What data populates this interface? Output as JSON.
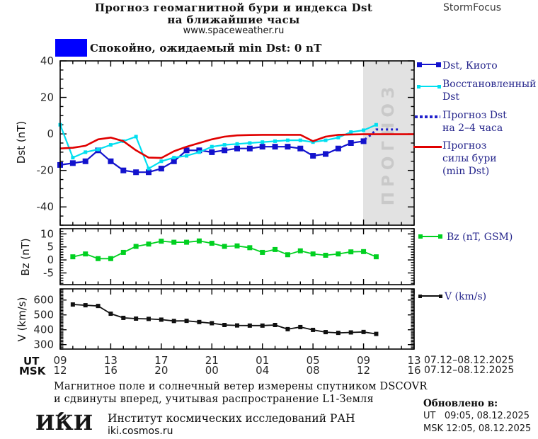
{
  "header": {
    "title_line1": "Прогноз геомагнитной бури и индекса Dst",
    "title_line2": "на ближайшие часы",
    "url": "www.spaceweather.ru",
    "brand": "StormFocus"
  },
  "status": {
    "label": "Спокойно, ожидаемый min Dst: 0 nT"
  },
  "colors": {
    "status_blue": "#0000ff",
    "forecast_bg": "#e2e2e2",
    "forecast_text": "#c9c9c9",
    "legend_text": "#26268c"
  },
  "x_axis": {
    "ut_label": "UT",
    "msk_label": "MSK",
    "ut_ticks": [
      "09",
      "13",
      "17",
      "21",
      "01",
      "05",
      "09",
      "13"
    ],
    "msk_ticks": [
      "12",
      "16",
      "20",
      "00",
      "04",
      "08",
      "12",
      "16"
    ],
    "ut_date": "07.12–08.12.2025",
    "msk_date": "07.12–08.12.2025"
  },
  "legends": {
    "dst": [
      {
        "line1": "Dst, Киото",
        "line2": ""
      },
      {
        "line1": "Восстановленный",
        "line2": "Dst"
      },
      {
        "line1": "Прогноз Dst",
        "line2": "на 2–4 часа"
      },
      {
        "line1": "Прогноз",
        "line2": "силы бури",
        "line3": "(min Dst)"
      }
    ],
    "bz": "Bz (nT, GSM)",
    "v": "V (km/s)"
  },
  "chart_data": [
    {
      "id": "dst",
      "type": "line",
      "title": "Прогноз геомагнитной бури и индекса Dst",
      "ylabel": "Dst (nT)",
      "ylim": [
        -50,
        40
      ],
      "yticks": [
        40,
        20,
        0,
        -20,
        -40
      ],
      "xlim_hours": [
        0,
        28
      ],
      "xticks_hours": [
        0,
        4,
        8,
        12,
        16,
        20,
        24,
        28
      ],
      "x_start": "09 UT 07.12.2025",
      "grid": false,
      "legend_position": "right",
      "forecast_region": {
        "x_start": 24,
        "x_end": 28,
        "label": "ПРОГНОЗ"
      },
      "series": [
        {
          "name": "Dst, Киото",
          "color": "#1212cd",
          "width": 2.2,
          "marker": "square",
          "marker_size": 8,
          "x": [
            0,
            1,
            2,
            3,
            4,
            5,
            6,
            7,
            8,
            9,
            10,
            11,
            12,
            13,
            14,
            15,
            16,
            17,
            18,
            19,
            20,
            21,
            22,
            23,
            24
          ],
          "values": [
            -17,
            -16,
            -15,
            -9,
            -15,
            -20,
            -21,
            -21,
            -19,
            -15,
            -9,
            -9,
            -10,
            -9,
            -8,
            -8,
            -7,
            -7,
            -7,
            -8,
            -12,
            -11,
            -8,
            -5,
            -4
          ]
        },
        {
          "name": "Восстановленный Dst",
          "color": "#00dff0",
          "width": 2.2,
          "marker": "square",
          "marker_size": 5,
          "x": [
            0,
            1,
            2,
            3,
            4,
            5,
            6,
            7,
            8,
            9,
            10,
            11,
            12,
            13,
            14,
            15,
            16,
            17,
            18,
            19,
            20,
            21,
            22,
            23,
            24,
            25
          ],
          "values": [
            5,
            -13,
            -10,
            -8.5,
            -6,
            -4,
            -1.5,
            -19,
            -15,
            -13,
            -12,
            -10,
            -7,
            -6,
            -5.5,
            -5,
            -4.5,
            -4,
            -3.5,
            -3.5,
            -4.5,
            -3.5,
            -2,
            1,
            2,
            5
          ]
        },
        {
          "name": "Прогноз Dst на 2–4 часа",
          "color": "#2222cc",
          "width": 3,
          "style": "dotted",
          "x": [
            24.1,
            24.6,
            25,
            26.9
          ],
          "values": [
            -3,
            -0.5,
            2.4,
            2.4
          ]
        },
        {
          "name": "Прогноз силы бури (min Dst)",
          "color": "#e00000",
          "width": 2.6,
          "x": [
            0,
            1,
            2,
            3,
            4,
            5,
            6,
            7,
            8,
            9,
            10,
            11,
            12,
            13,
            14,
            15,
            16,
            17,
            18,
            19,
            20,
            21,
            22,
            23,
            24,
            25,
            26,
            27,
            28
          ],
          "values": [
            -8,
            -7.6,
            -6.5,
            -3,
            -2,
            -4,
            -9,
            -13,
            -13.2,
            -9.5,
            -7,
            -5,
            -3,
            -1.5,
            -0.8,
            -0.6,
            -0.5,
            -0.5,
            -0.5,
            -0.5,
            -4,
            -1.5,
            -0.5,
            -0.3,
            -0.2,
            -0.2,
            -0.2,
            -0.2,
            -0.2
          ]
        }
      ]
    },
    {
      "id": "bz",
      "type": "line",
      "ylabel": "Bz (nT)",
      "ylim": [
        -9.5,
        12
      ],
      "yticks": [
        10,
        5,
        0,
        -5
      ],
      "series": [
        {
          "name": "Bz (nT, GSM)",
          "color": "#00d020",
          "width": 1.8,
          "marker": "square",
          "marker_size": 7,
          "x": [
            1,
            2,
            3,
            4,
            5,
            6,
            7,
            8,
            9,
            10,
            11,
            12,
            13,
            14,
            15,
            16,
            17,
            18,
            19,
            20,
            21,
            22,
            23,
            24,
            25
          ],
          "values": [
            1.2,
            2.3,
            0.5,
            0.5,
            2.9,
            5.2,
            6.1,
            7.2,
            6.8,
            6.8,
            7.3,
            6.4,
            5.2,
            5.4,
            4.7,
            2.9,
            4,
            2,
            3.5,
            2.3,
            1.8,
            2.3,
            3.1,
            3.2,
            1.2
          ]
        }
      ]
    },
    {
      "id": "v",
      "type": "line",
      "ylabel": "V (km/s)",
      "ylim": [
        270,
        675
      ],
      "yticks": [
        600,
        500,
        400,
        300
      ],
      "series": [
        {
          "name": "V (km/s)",
          "color": "#101010",
          "width": 1.8,
          "marker": "square",
          "marker_size": 6,
          "x": [
            1,
            2,
            3,
            4,
            5,
            6,
            7,
            8,
            9,
            10,
            11,
            12,
            13,
            14,
            15,
            16,
            17,
            18,
            19,
            20,
            21,
            22,
            23,
            24,
            25
          ],
          "values": [
            570,
            565,
            560,
            508,
            480,
            475,
            473,
            468,
            459,
            460,
            452,
            444,
            432,
            429,
            428,
            428,
            432,
            404,
            418,
            399,
            384,
            379,
            382,
            385,
            372
          ]
        }
      ]
    }
  ],
  "footer": {
    "note_line1": "Магнитное поле и солнечный ветер измерены спутником DSCOVR",
    "note_line2": "и сдвинуты вперед, учитывая распространение L1-Земля",
    "logo": "ИКИ",
    "institute": "Институт космических исследований РАН",
    "site": "iki.cosmos.ru",
    "updated_label": "Обновлено в:",
    "updated_ut": "UT   09:05, 08.12.2025",
    "updated_msk": "MSK 12:05, 08.12.2025"
  }
}
